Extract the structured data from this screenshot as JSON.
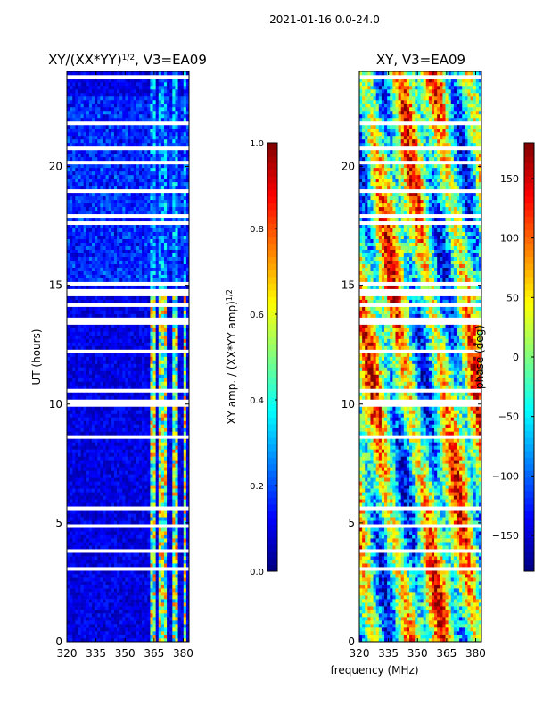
{
  "figure_title": "2021-01-16 0.0-24.0",
  "colors": {
    "background": "#ffffff",
    "low": "#00007f",
    "mid": "#7fff7f",
    "high": "#7f0000",
    "gap": "#ffffff"
  },
  "chart_data": [
    {
      "type": "heatmap",
      "title_base": "XY/(XX*YY)",
      "title_sup": "1/2",
      "title_suffix": ", V3=EA09",
      "xlabel": "",
      "ylabel": "UT (hours)",
      "xlim": [
        320,
        383
      ],
      "ylim": [
        0,
        24
      ],
      "xticks": [
        320,
        335,
        350,
        365,
        380
      ],
      "yticks": [
        0,
        5,
        10,
        15,
        20
      ],
      "colorbar": {
        "label_base": "XY amp. / (XX*YY amp)",
        "label_sup": "1/2",
        "range": [
          0.0,
          1.0
        ],
        "ticks": [
          "0.0",
          "0.2",
          "0.4",
          "0.6",
          "0.8",
          "1.0"
        ]
      },
      "description": "Normalized XY amplitude, mostly near 0 except strong RFI channels between 363 and 380 MHz",
      "rfi_channels_mhz": [
        [
          363.5,
          366.5
        ],
        [
          367.5,
          372
        ],
        [
          375,
          377.5
        ],
        [
          379.5,
          381
        ]
      ],
      "gaps_ut_hours": [
        [
          10.0,
          10.25
        ],
        [
          13.4,
          13.6
        ],
        [
          14.5,
          14.7
        ],
        [
          5.5,
          5.6
        ],
        [
          8.6,
          8.7
        ],
        [
          22.6,
          22.7
        ]
      ]
    },
    {
      "type": "heatmap",
      "title": "XY, V3=EA09",
      "xlabel": "frequency (MHz)",
      "ylabel": "",
      "xlim": [
        320,
        383
      ],
      "ylim": [
        0,
        24
      ],
      "xticks": [
        320,
        335,
        350,
        365,
        380
      ],
      "yticks": [
        0,
        5,
        10,
        15,
        20
      ],
      "colorbar": {
        "label": "phase (deg)",
        "range": [
          -180,
          180
        ],
        "ticks": [
          "−150",
          "−100",
          "−50",
          "0",
          "50",
          "100",
          "150"
        ]
      },
      "description": "XY phase in degrees, banded and noisy structure across all frequencies",
      "gaps_ut_hours": [
        [
          10.0,
          10.25
        ],
        [
          13.4,
          13.6
        ],
        [
          14.5,
          14.7
        ],
        [
          5.5,
          5.6
        ],
        [
          8.6,
          8.7
        ],
        [
          22.6,
          22.7
        ]
      ]
    }
  ]
}
